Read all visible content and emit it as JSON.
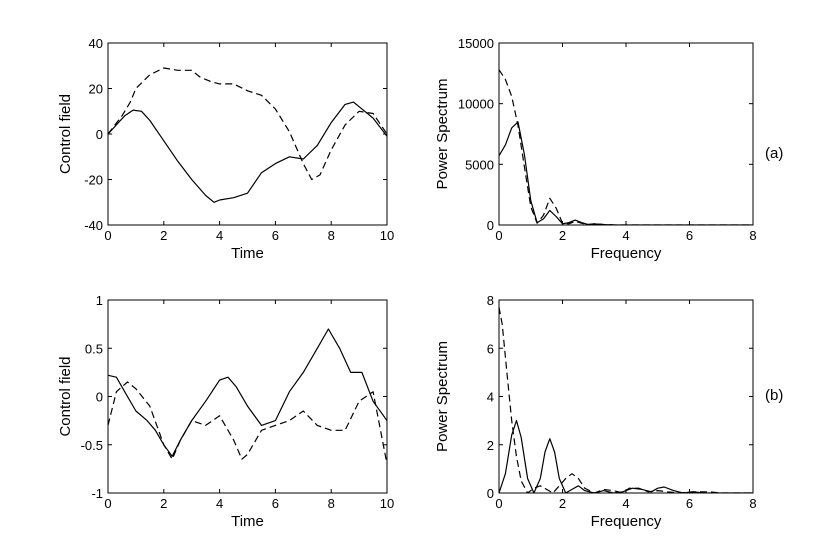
{
  "figure": {
    "panel_labels": [
      "(a)",
      "(b)"
    ]
  },
  "chart_data": [
    {
      "id": "a-time",
      "type": "line",
      "title": "",
      "xlabel": "Time",
      "ylabel": "Control field",
      "xlim": [
        0,
        10
      ],
      "ylim": [
        -40,
        40
      ],
      "xticks": [
        "0",
        "2",
        "4",
        "6",
        "8",
        "10"
      ],
      "yticks": [
        "-40",
        "-20",
        "0",
        "20",
        "40"
      ],
      "series": [
        {
          "name": "solid",
          "style": "solid",
          "x": [
            0,
            0.3,
            0.6,
            0.9,
            1.2,
            1.5,
            2.0,
            2.5,
            3.0,
            3.5,
            3.8,
            4.0,
            4.5,
            5.0,
            5.5,
            6.0,
            6.5,
            7.0,
            7.5,
            8.0,
            8.5,
            8.8,
            9.0,
            9.5,
            10.0
          ],
          "y": [
            0,
            4,
            8,
            10.5,
            10,
            6,
            -3,
            -12,
            -20,
            -27,
            -30,
            -29,
            -28,
            -26,
            -17,
            -13,
            -10,
            -11,
            -5,
            5,
            13,
            14,
            12,
            7,
            -1
          ]
        },
        {
          "name": "dashed",
          "style": "dashed",
          "x": [
            0,
            0.5,
            0.8,
            1.0,
            1.5,
            2.0,
            2.5,
            3.0,
            3.3,
            3.7,
            4.0,
            4.5,
            5.0,
            5.5,
            6.0,
            6.5,
            7.0,
            7.3,
            7.6,
            8.0,
            8.5,
            9.0,
            9.5,
            10.0
          ],
          "y": [
            0,
            8,
            14,
            20,
            26,
            29,
            28,
            28,
            25,
            23,
            22,
            22,
            19,
            17,
            11,
            1,
            -13,
            -20,
            -18,
            -7,
            4,
            10,
            9,
            0
          ]
        }
      ]
    },
    {
      "id": "a-frequency",
      "type": "line",
      "title": "",
      "xlabel": "Frequency",
      "ylabel": "Power Spectrum",
      "xlim": [
        0,
        8
      ],
      "ylim": [
        0,
        15000
      ],
      "xticks": [
        "0",
        "2",
        "4",
        "6",
        "8"
      ],
      "yticks": [
        "0",
        "5000",
        "10000",
        "15000"
      ],
      "series": [
        {
          "name": "solid",
          "style": "solid",
          "x": [
            0,
            0.2,
            0.4,
            0.6,
            0.8,
            1.0,
            1.2,
            1.4,
            1.6,
            1.8,
            2.0,
            2.2,
            2.4,
            2.6,
            2.8,
            3.0,
            3.3,
            3.6,
            4.0,
            5.0,
            8.0
          ],
          "y": [
            5700,
            6600,
            8000,
            8500,
            5800,
            2000,
            200,
            500,
            1200,
            700,
            100,
            200,
            400,
            200,
            50,
            100,
            30,
            10,
            0,
            0,
            0
          ]
        },
        {
          "name": "dashed",
          "style": "dashed",
          "x": [
            0,
            0.2,
            0.4,
            0.6,
            0.8,
            1.0,
            1.2,
            1.4,
            1.6,
            1.8,
            2.0,
            2.2,
            2.4,
            2.6,
            2.8,
            3.0,
            3.3,
            3.6,
            4.0,
            5.0,
            8.0
          ],
          "y": [
            12800,
            12000,
            10600,
            8200,
            4800,
            1500,
            150,
            800,
            2200,
            1400,
            150,
            100,
            300,
            150,
            20,
            100,
            40,
            10,
            0,
            0,
            0
          ]
        }
      ]
    },
    {
      "id": "b-time",
      "type": "line",
      "title": "",
      "xlabel": "Time",
      "ylabel": "Control field",
      "xlim": [
        0,
        10
      ],
      "ylim": [
        -1,
        1
      ],
      "xticks": [
        "0",
        "2",
        "4",
        "6",
        "8",
        "10"
      ],
      "yticks": [
        "-1",
        "-0.5",
        "0",
        "0.5",
        "1"
      ],
      "series": [
        {
          "name": "solid",
          "style": "solid",
          "x": [
            0,
            0.3,
            0.6,
            1.0,
            1.4,
            1.7,
            2.0,
            2.3,
            2.6,
            3.0,
            3.5,
            4.0,
            4.3,
            4.6,
            5.0,
            5.5,
            6.0,
            6.5,
            7.0,
            7.5,
            7.9,
            8.3,
            8.7,
            9.1,
            9.5,
            10.0
          ],
          "y": [
            0.22,
            0.2,
            0.05,
            -0.15,
            -0.25,
            -0.35,
            -0.5,
            -0.62,
            -0.45,
            -0.25,
            -0.05,
            0.17,
            0.2,
            0.1,
            -0.1,
            -0.3,
            -0.25,
            0.05,
            0.25,
            0.5,
            0.7,
            0.5,
            0.25,
            0.25,
            -0.05,
            -0.25
          ]
        },
        {
          "name": "dashed",
          "style": "dashed",
          "x": [
            0,
            0.3,
            0.7,
            1.0,
            1.5,
            2.0,
            2.3,
            2.6,
            3.0,
            3.5,
            4.0,
            4.5,
            4.8,
            5.0,
            5.5,
            6.0,
            6.5,
            7.0,
            7.5,
            8.0,
            8.5,
            9.0,
            9.5,
            10.0
          ],
          "y": [
            -0.3,
            0.05,
            0.15,
            0.08,
            -0.1,
            -0.5,
            -0.65,
            -0.45,
            -0.25,
            -0.3,
            -0.2,
            -0.45,
            -0.65,
            -0.6,
            -0.35,
            -0.3,
            -0.25,
            -0.15,
            -0.3,
            -0.35,
            -0.35,
            -0.05,
            0.05,
            -0.7
          ]
        }
      ]
    },
    {
      "id": "b-frequency",
      "type": "line",
      "title": "",
      "xlabel": "Frequency",
      "ylabel": "Power Spectrum",
      "xlim": [
        0,
        8
      ],
      "ylim": [
        0,
        8
      ],
      "xticks": [
        "0",
        "2",
        "4",
        "6",
        "8"
      ],
      "yticks": [
        "0",
        "2",
        "4",
        "6",
        "8"
      ],
      "series": [
        {
          "name": "solid",
          "style": "solid",
          "x": [
            0,
            0.2,
            0.4,
            0.55,
            0.7,
            0.9,
            1.1,
            1.3,
            1.45,
            1.6,
            1.75,
            1.9,
            2.1,
            2.3,
            2.5,
            2.7,
            3.0,
            3.3,
            3.6,
            3.9,
            4.2,
            4.5,
            4.8,
            5.0,
            5.2,
            5.5,
            5.8,
            6.1,
            6.5,
            7.0,
            8.0
          ],
          "y": [
            0,
            0.8,
            2.4,
            3.0,
            2.3,
            0.6,
            0.0,
            0.6,
            1.7,
            2.25,
            1.7,
            0.6,
            0.0,
            0.15,
            0.3,
            0.1,
            0.0,
            0.1,
            0.0,
            0.05,
            0.2,
            0.15,
            0.05,
            0.2,
            0.25,
            0.1,
            0.0,
            0.05,
            0.0,
            0.0,
            0.0
          ]
        },
        {
          "name": "dashed",
          "style": "dashed",
          "x": [
            0,
            0.1,
            0.25,
            0.4,
            0.55,
            0.7,
            0.9,
            1.1,
            1.3,
            1.5,
            1.7,
            1.9,
            2.1,
            2.3,
            2.5,
            2.7,
            3.0,
            3.3,
            3.6,
            3.9,
            4.1,
            4.4,
            4.7,
            5.0,
            5.3,
            5.7,
            6.1,
            6.6,
            7.0,
            7.5,
            8.0
          ],
          "y": [
            7.7,
            7.0,
            5.0,
            3.0,
            1.5,
            0.5,
            0.0,
            0.2,
            0.3,
            0.15,
            0.0,
            0.3,
            0.6,
            0.8,
            0.6,
            0.2,
            0.0,
            0.15,
            0.1,
            0.0,
            0.2,
            0.2,
            0.05,
            0.1,
            0.05,
            0.0,
            0.05,
            0.05,
            0.0,
            0.0,
            0.0
          ]
        }
      ]
    }
  ]
}
